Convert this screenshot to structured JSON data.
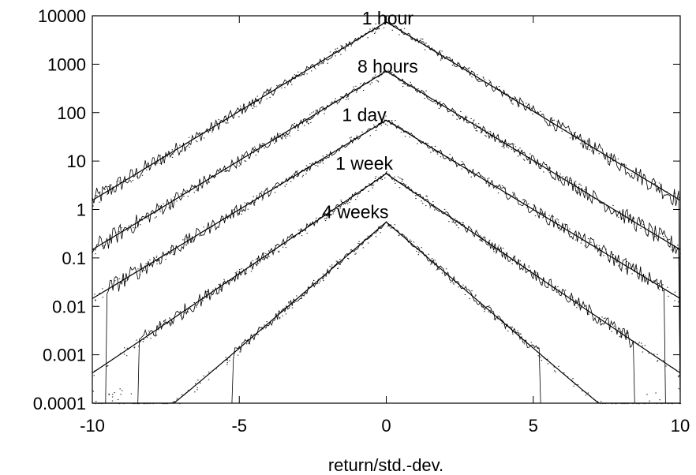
{
  "chart_data": {
    "type": "line",
    "title": "",
    "xlabel": "return/std.-dev.",
    "ylabel": "",
    "xlim": [
      -10,
      10
    ],
    "ylim": [
      0.0001,
      10000
    ],
    "y_scale": "log",
    "grid": false,
    "legend": "none",
    "x_ticks": [
      -10,
      -5,
      0,
      5,
      10
    ],
    "x_tick_labels": [
      "-10",
      "-5",
      "0",
      "5",
      "10"
    ],
    "y_ticks": [
      10000,
      1000,
      100,
      10,
      1,
      0.1,
      0.01,
      0.001,
      0.0001
    ],
    "y_tick_labels": [
      "10000",
      "1000",
      "100",
      "10",
      "1",
      "0.1",
      "0.01",
      "0.001",
      "0.0001"
    ],
    "annotations": [
      {
        "text": "1 hour",
        "x": 0.05,
        "y": 9000
      },
      {
        "text": "8 hours",
        "x": 0.05,
        "y": 900
      },
      {
        "text": "1 day",
        "x": -0.75,
        "y": 90
      },
      {
        "text": "1 week",
        "x": -0.75,
        "y": 9
      },
      {
        "text": "4 weeks",
        "x": -1.05,
        "y": 0.9
      }
    ],
    "series": [
      {
        "peak": 7500,
        "decay": 0.85,
        "floor": 1.0,
        "cutoff": 10.0,
        "style": "solid+dots"
      },
      {
        "peak": 720,
        "decay": 0.85,
        "floor": 0.1,
        "cutoff": 10.0,
        "style": "solid+dots"
      },
      {
        "peak": 70,
        "decay": 0.85,
        "floor": 0.012,
        "cutoff": 9.5,
        "style": "solid+dots"
      },
      {
        "peak": 5.5,
        "decay": 0.95,
        "floor": 0.0005,
        "cutoff": 8.4,
        "style": "solid+dots"
      },
      {
        "peak": 0.55,
        "decay": 1.2,
        "floor": 0.0003,
        "cutoff": 5.2,
        "style": "solid+dots"
      }
    ]
  }
}
